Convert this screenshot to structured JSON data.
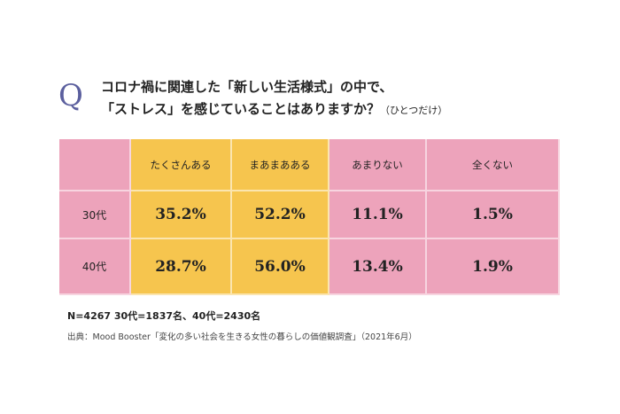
{
  "title": {
    "q_mark": "Q",
    "line1": "コロナ禍に関連した「新しい生活様式」の中で、",
    "line2": "「ストレス」を感じていることはありますか？",
    "note": "（ひとつだけ）"
  },
  "chart_data": {
    "type": "table",
    "columns": [
      "たくさんある",
      "まあまあある",
      "あまりない",
      "全くない"
    ],
    "rows": [
      {
        "label": "30代",
        "values": [
          "35.2%",
          "52.2%",
          "11.1%",
          "1.5%"
        ]
      },
      {
        "label": "40代",
        "values": [
          "28.7%",
          "56.0%",
          "13.4%",
          "1.9%"
        ]
      }
    ],
    "colors": {
      "positive": "#f6c54e",
      "negative": "#eda3bb"
    }
  },
  "footer": {
    "n": "N=4267 30代=1837名、40代=2430名",
    "source": "出典：Mood Booster「変化の多い社会を生きる女性の暮らしの価値観調査」（2021年6月）"
  }
}
